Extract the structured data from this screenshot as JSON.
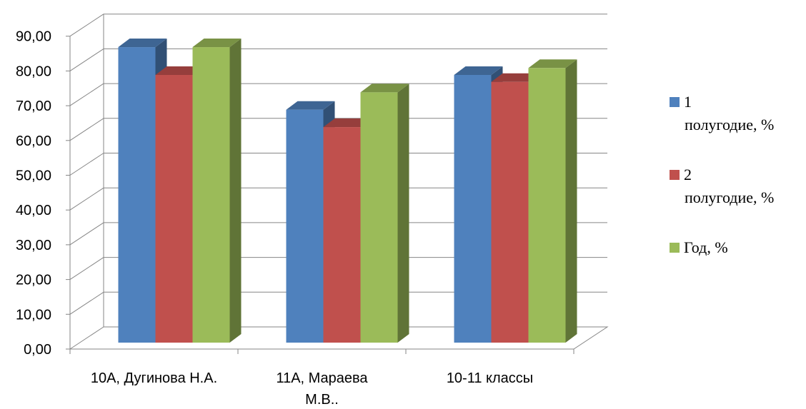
{
  "chart_data": {
    "type": "bar",
    "categories": [
      "10А, Дугинова Н.А.",
      "11А, Мараева М.В..",
      "10-11 классы"
    ],
    "series": [
      {
        "name": "1 полугодие, %",
        "values": [
          85.0,
          67.0,
          77.0
        ],
        "color": "#4F81BD"
      },
      {
        "name": "2 полугодие, %",
        "values": [
          77.0,
          62.0,
          75.0
        ],
        "color": "#C0504D"
      },
      {
        "name": "Год, %",
        "values": [
          85.0,
          72.0,
          79.0
        ],
        "color": "#9BBB59"
      }
    ],
    "y_ticks": [
      "0,00",
      "10,00",
      "20,00",
      "30,00",
      "40,00",
      "50,00",
      "60,00",
      "70,00",
      "80,00",
      "90,00"
    ],
    "ylim": [
      0,
      90
    ],
    "title": "",
    "xlabel": "",
    "ylabel": "",
    "grid": true,
    "legend": {
      "position": "right",
      "entries": [
        {
          "lines": [
            "1",
            "полугодие, %"
          ]
        },
        {
          "lines": [
            "2",
            "полугодие, %"
          ]
        },
        {
          "lines": [
            "Год, %"
          ]
        }
      ]
    },
    "category_label_lines": [
      [
        "10А, Дугинова Н.А."
      ],
      [
        "11А, Мараева",
        "М.В.."
      ],
      [
        "10-11 классы"
      ]
    ],
    "style": "3d-clustered-column"
  }
}
